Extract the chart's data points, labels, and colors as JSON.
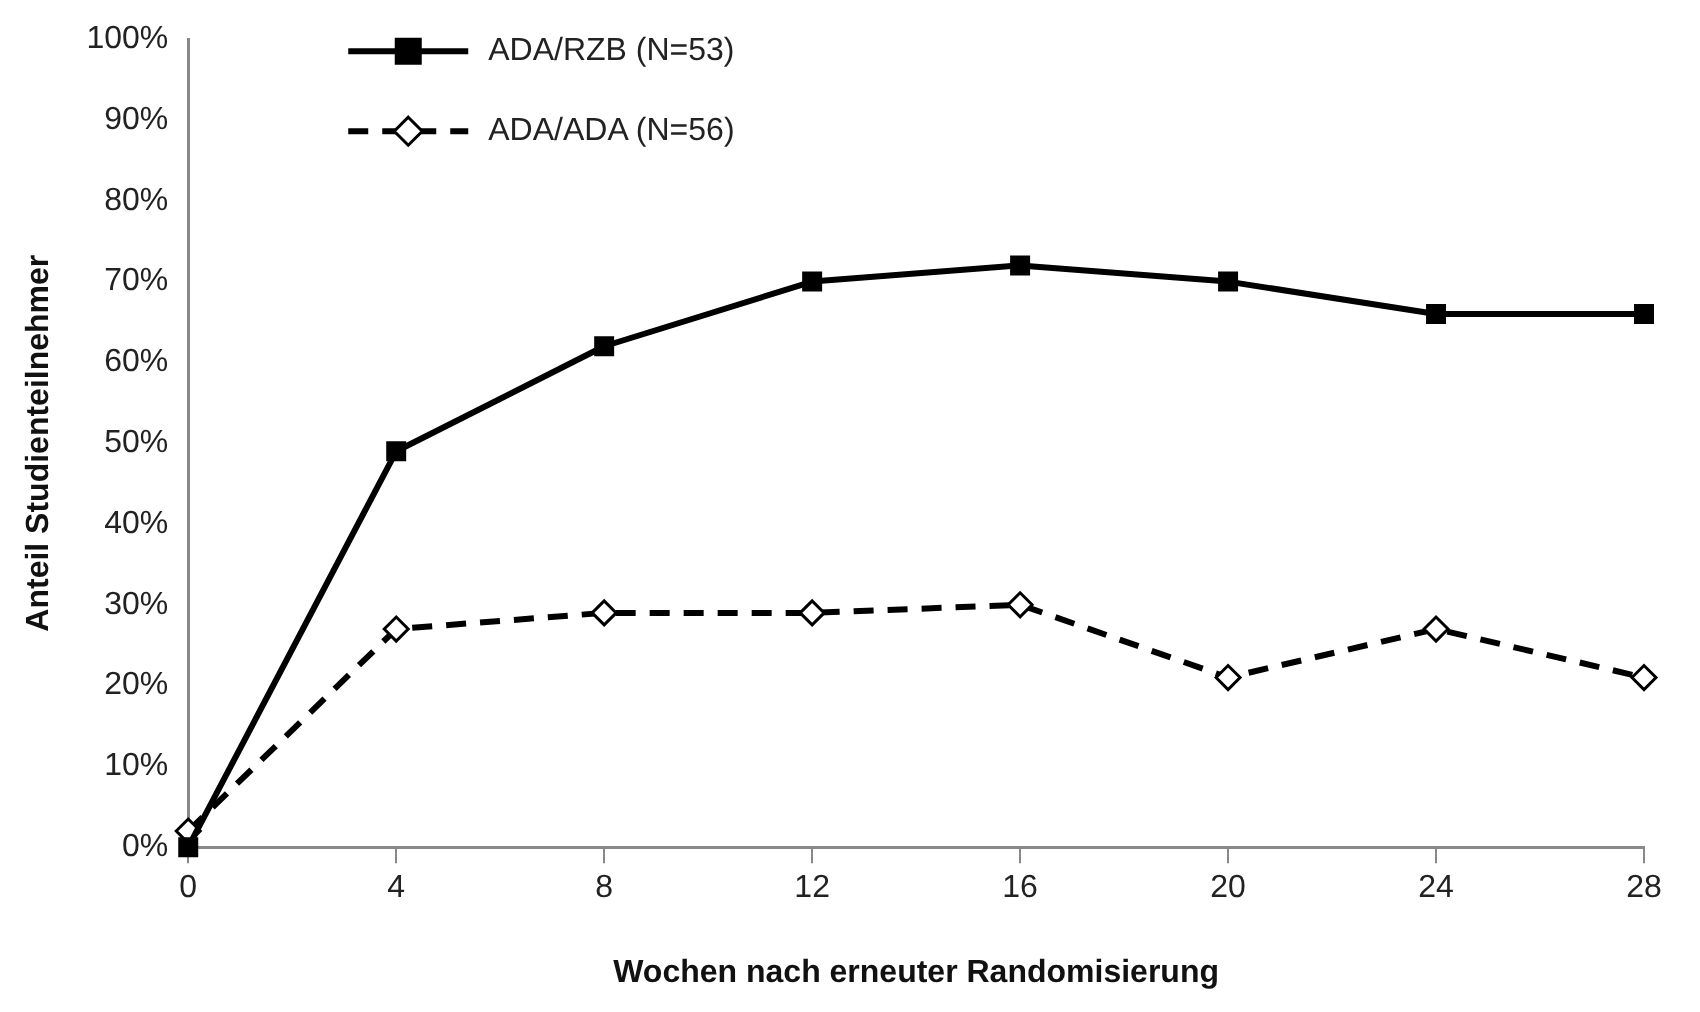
{
  "chart_data": {
    "type": "line",
    "xlabel": "Wochen nach erneuter Randomisierung",
    "ylabel": "Anteil Studienteilnehmer",
    "x": [
      0,
      4,
      8,
      12,
      16,
      20,
      24,
      28
    ],
    "series": [
      {
        "name": "ADA/RZB (N=53)",
        "color": "#000000",
        "marker": "square",
        "line_style": "solid",
        "values": [
          0,
          49,
          62,
          70,
          72,
          70,
          66,
          66
        ]
      },
      {
        "name": "ADA/ADA (N=56)",
        "color": "#000000",
        "marker": "diamond",
        "line_style": "dashed",
        "values": [
          2,
          27,
          29,
          29,
          30,
          21,
          27,
          21
        ]
      }
    ],
    "xlim": [
      0,
      28
    ],
    "xticks": [
      0,
      4,
      8,
      12,
      16,
      20,
      24,
      28
    ],
    "ylim": [
      0,
      100
    ],
    "yticks": [
      {
        "value": 0,
        "label": "0%"
      },
      {
        "value": 10,
        "label": "10%"
      },
      {
        "value": 20,
        "label": "20%"
      },
      {
        "value": 30,
        "label": "30%"
      },
      {
        "value": 40,
        "label": "40%"
      },
      {
        "value": 50,
        "label": "50%"
      },
      {
        "value": 60,
        "label": "60%"
      },
      {
        "value": 70,
        "label": "70%"
      },
      {
        "value": 80,
        "label": "80%"
      },
      {
        "value": 90,
        "label": "90%"
      },
      {
        "value": 100,
        "label": "100%"
      }
    ],
    "grid": false,
    "legend": "top left"
  }
}
